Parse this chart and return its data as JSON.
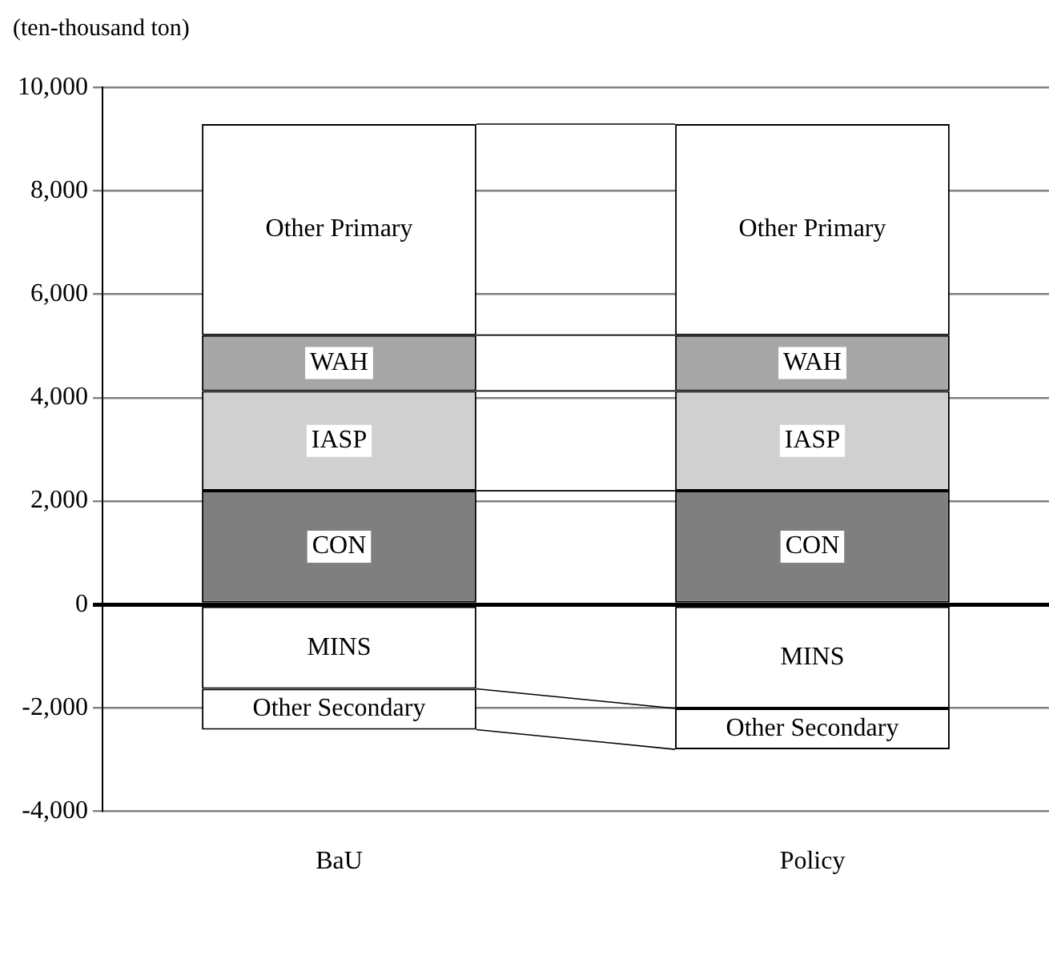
{
  "chart_data": {
    "type": "bar",
    "ylabel": "(ten-thousand ton)",
    "categories": [
      "BaU",
      "Policy"
    ],
    "stacked": true,
    "series": [
      {
        "name": "CON",
        "color": "#7f7f7f",
        "values": [
          2200,
          2200
        ]
      },
      {
        "name": "IASP",
        "color": "#d0d0d0",
        "values": [
          1930,
          1930
        ]
      },
      {
        "name": "WAH",
        "color": "#a6a6a6",
        "values": [
          1080,
          1080
        ]
      },
      {
        "name": "Other Primary",
        "color": "#ffffff",
        "values": [
          4080,
          4080
        ]
      },
      {
        "name": "MINS",
        "color": "#ffffff",
        "values": [
          -1630,
          -2010
        ]
      },
      {
        "name": "Other Secondary",
        "color": "#ffffff",
        "values": [
          -790,
          -790
        ]
      }
    ],
    "ylim": [
      -4000,
      10000
    ],
    "yticks": [
      {
        "value": -4000,
        "label": "-4,000"
      },
      {
        "value": -2000,
        "label": "-2,000"
      },
      0,
      {
        "value": 2000,
        "label": "2,000"
      },
      {
        "value": 4000,
        "label": "4,000"
      },
      {
        "value": 6000,
        "label": "6,000"
      },
      {
        "value": 8000,
        "label": "8,000"
      },
      {
        "value": 10000,
        "label": "10,000"
      }
    ],
    "grid": "y",
    "legend": false
  }
}
